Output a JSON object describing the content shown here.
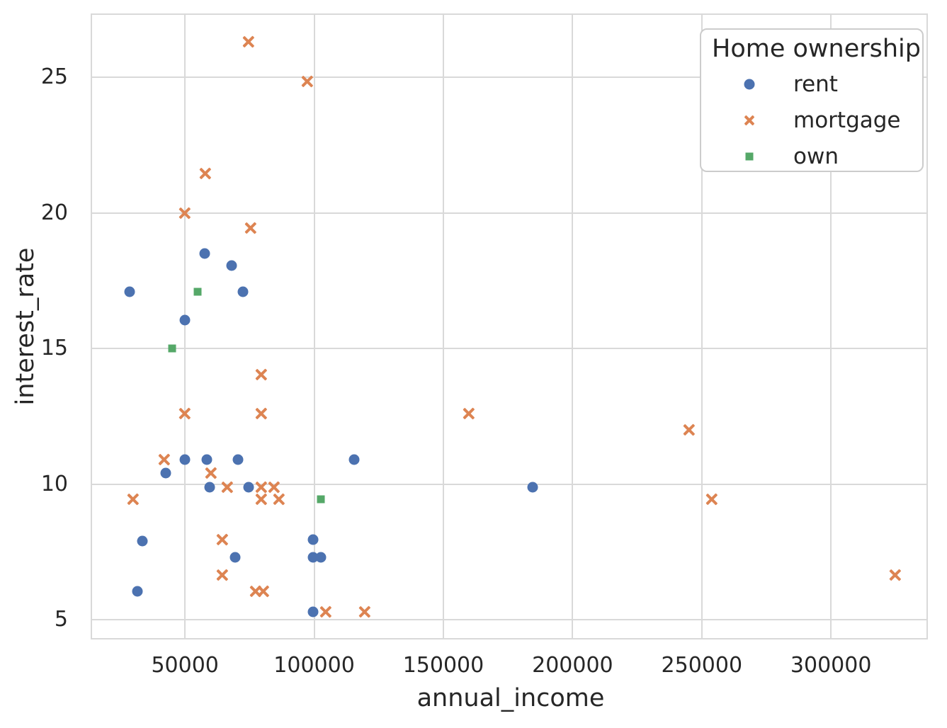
{
  "figure": {
    "background_color": "#ffffff",
    "grid_color": "#d9d9d9",
    "spine_color": "#d9d9d9",
    "text_color": "#262626",
    "legend_border_color": "#cccccc"
  },
  "chart_data": {
    "type": "scatter",
    "title": "",
    "xlabel": "annual_income",
    "ylabel": "interest_rate",
    "xlim": [
      13500,
      337500
    ],
    "ylim": [
      4.28,
      27.35
    ],
    "grid": true,
    "x_ticks": [
      50000,
      100000,
      150000,
      200000,
      250000,
      300000
    ],
    "x_tick_labels": [
      "50000",
      "100000",
      "150000",
      "200000",
      "250000",
      "300000"
    ],
    "y_ticks": [
      5,
      10,
      15,
      20,
      25
    ],
    "y_tick_labels": [
      "5",
      "10",
      "15",
      "20",
      "25"
    ],
    "legend": {
      "title": "Home ownership",
      "position": "upper right"
    },
    "series": [
      {
        "name": "rent",
        "marker": "circle",
        "color": "#4C72B0",
        "points": [
          [
            57500,
            18.5
          ],
          [
            68000,
            18.05
          ],
          [
            28500,
            17.1
          ],
          [
            72500,
            17.1
          ],
          [
            50000,
            16.05
          ],
          [
            50000,
            10.9
          ],
          [
            58500,
            10.9
          ],
          [
            70500,
            10.9
          ],
          [
            115500,
            10.9
          ],
          [
            42500,
            10.4
          ],
          [
            59500,
            9.9
          ],
          [
            74500,
            9.9
          ],
          [
            184500,
            9.9
          ],
          [
            33500,
            7.9
          ],
          [
            99500,
            7.95
          ],
          [
            69500,
            7.3
          ],
          [
            99500,
            7.3
          ],
          [
            102500,
            7.3
          ],
          [
            31500,
            6.05
          ],
          [
            99500,
            5.3
          ]
        ]
      },
      {
        "name": "mortgage",
        "marker": "x",
        "color": "#DD8452",
        "points": [
          [
            74500,
            26.3
          ],
          [
            97500,
            24.85
          ],
          [
            58000,
            21.45
          ],
          [
            50000,
            20.0
          ],
          [
            75500,
            19.45
          ],
          [
            79500,
            14.05
          ],
          [
            50000,
            12.6
          ],
          [
            79500,
            12.6
          ],
          [
            160000,
            12.6
          ],
          [
            245000,
            12.0
          ],
          [
            42000,
            10.9
          ],
          [
            60000,
            10.4
          ],
          [
            66500,
            9.9
          ],
          [
            79500,
            9.9
          ],
          [
            84500,
            9.9
          ],
          [
            30000,
            9.45
          ],
          [
            79500,
            9.45
          ],
          [
            86500,
            9.45
          ],
          [
            254000,
            9.45
          ],
          [
            64500,
            7.95
          ],
          [
            64500,
            6.65
          ],
          [
            325000,
            6.65
          ],
          [
            77500,
            6.05
          ],
          [
            80500,
            6.05
          ],
          [
            104500,
            5.3
          ],
          [
            119500,
            5.3
          ]
        ]
      },
      {
        "name": "own",
        "marker": "square",
        "color": "#55A868",
        "points": [
          [
            55000,
            17.1
          ],
          [
            45000,
            15.0
          ],
          [
            102500,
            9.45
          ]
        ]
      }
    ]
  }
}
